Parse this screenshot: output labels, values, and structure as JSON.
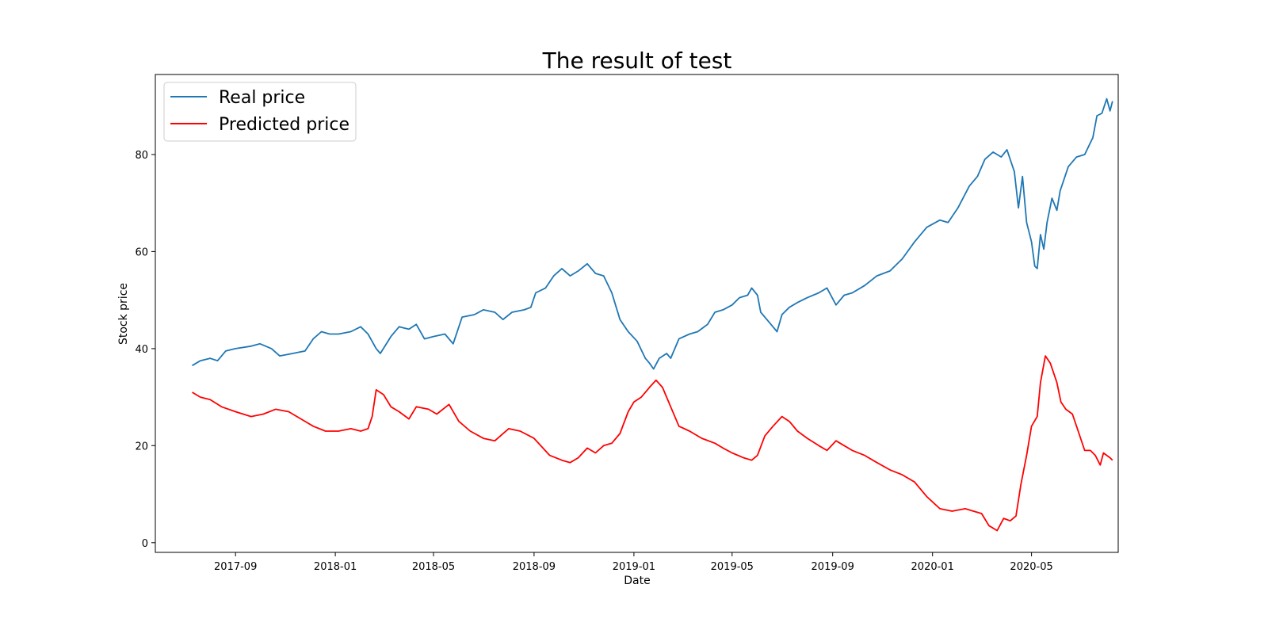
{
  "chart_data": {
    "type": "line",
    "title": "The result of test",
    "xlabel": "Date",
    "ylabel": "Stock price",
    "xlim": [
      "2017-05-26",
      "2020-08-15"
    ],
    "ylim": [
      -2,
      96.5
    ],
    "x_ticks": [
      "2017-09-01",
      "2018-01-01",
      "2018-05-01",
      "2018-09-01",
      "2019-01-01",
      "2019-05-01",
      "2019-09-01",
      "2020-01-01",
      "2020-05-01"
    ],
    "x_tick_labels": [
      "2017-09",
      "2018-01",
      "2018-05",
      "2018-09",
      "2019-01",
      "2019-05",
      "2019-09",
      "2020-01",
      "2020-05"
    ],
    "y_ticks": [
      0,
      20,
      40,
      60,
      80
    ],
    "y_tick_labels": [
      "0",
      "20",
      "40",
      "60",
      "80"
    ],
    "grid": false,
    "legend_position": "top-left",
    "series": [
      {
        "name": "Real price",
        "color": "#1f77b4",
        "points": [
          [
            "2017-07-10",
            36.5
          ],
          [
            "2017-07-20",
            37.5
          ],
          [
            "2017-08-01",
            38.0
          ],
          [
            "2017-08-10",
            37.5
          ],
          [
            "2017-08-20",
            39.5
          ],
          [
            "2017-09-01",
            40.0
          ],
          [
            "2017-09-20",
            40.5
          ],
          [
            "2017-10-01",
            41.0
          ],
          [
            "2017-10-15",
            40.0
          ],
          [
            "2017-10-25",
            38.5
          ],
          [
            "2017-11-10",
            39.0
          ],
          [
            "2017-11-25",
            39.5
          ],
          [
            "2017-12-05",
            42.0
          ],
          [
            "2017-12-15",
            43.5
          ],
          [
            "2017-12-25",
            43.0
          ],
          [
            "2018-01-05",
            43.0
          ],
          [
            "2018-01-20",
            43.5
          ],
          [
            "2018-02-01",
            44.5
          ],
          [
            "2018-02-10",
            43.0
          ],
          [
            "2018-02-20",
            40.0
          ],
          [
            "2018-02-25",
            39.0
          ],
          [
            "2018-03-10",
            42.5
          ],
          [
            "2018-03-20",
            44.5
          ],
          [
            "2018-04-01",
            44.0
          ],
          [
            "2018-04-10",
            45.0
          ],
          [
            "2018-04-20",
            42.0
          ],
          [
            "2018-05-01",
            42.5
          ],
          [
            "2018-05-15",
            43.0
          ],
          [
            "2018-05-25",
            41.0
          ],
          [
            "2018-06-05",
            46.5
          ],
          [
            "2018-06-20",
            47.0
          ],
          [
            "2018-07-01",
            48.0
          ],
          [
            "2018-07-15",
            47.5
          ],
          [
            "2018-07-25",
            46.0
          ],
          [
            "2018-08-05",
            47.5
          ],
          [
            "2018-08-20",
            48.0
          ],
          [
            "2018-08-28",
            48.5
          ],
          [
            "2018-09-03",
            51.5
          ],
          [
            "2018-09-15",
            52.5
          ],
          [
            "2018-09-25",
            55.0
          ],
          [
            "2018-10-05",
            56.5
          ],
          [
            "2018-10-15",
            55.0
          ],
          [
            "2018-10-25",
            56.0
          ],
          [
            "2018-11-05",
            57.5
          ],
          [
            "2018-11-15",
            55.5
          ],
          [
            "2018-11-25",
            55.0
          ],
          [
            "2018-12-05",
            51.5
          ],
          [
            "2018-12-15",
            46.0
          ],
          [
            "2018-12-25",
            43.5
          ],
          [
            "2019-01-05",
            41.5
          ],
          [
            "2019-01-15",
            38.0
          ],
          [
            "2019-01-20",
            37.0
          ],
          [
            "2019-01-25",
            35.8
          ],
          [
            "2019-02-01",
            38.0
          ],
          [
            "2019-02-10",
            39.0
          ],
          [
            "2019-02-15",
            38.0
          ],
          [
            "2019-02-25",
            42.0
          ],
          [
            "2019-03-10",
            43.0
          ],
          [
            "2019-03-20",
            43.5
          ],
          [
            "2019-04-01",
            45.0
          ],
          [
            "2019-04-10",
            47.5
          ],
          [
            "2019-04-20",
            48.0
          ],
          [
            "2019-05-01",
            49.0
          ],
          [
            "2019-05-10",
            50.5
          ],
          [
            "2019-05-20",
            51.0
          ],
          [
            "2019-05-25",
            52.5
          ],
          [
            "2019-06-01",
            51.0
          ],
          [
            "2019-06-05",
            47.5
          ],
          [
            "2019-06-15",
            45.5
          ],
          [
            "2019-06-25",
            43.5
          ],
          [
            "2019-07-01",
            47.0
          ],
          [
            "2019-07-10",
            48.5
          ],
          [
            "2019-07-20",
            49.5
          ],
          [
            "2019-08-01",
            50.5
          ],
          [
            "2019-08-15",
            51.5
          ],
          [
            "2019-08-25",
            52.5
          ],
          [
            "2019-09-05",
            49.0
          ],
          [
            "2019-09-15",
            51.0
          ],
          [
            "2019-09-25",
            51.5
          ],
          [
            "2019-10-10",
            53.0
          ],
          [
            "2019-10-25",
            55.0
          ],
          [
            "2019-11-10",
            56.0
          ],
          [
            "2019-11-25",
            58.5
          ],
          [
            "2019-12-10",
            62.0
          ],
          [
            "2019-12-25",
            65.0
          ],
          [
            "2020-01-10",
            66.5
          ],
          [
            "2020-01-20",
            66.0
          ],
          [
            "2020-02-01",
            69.0
          ],
          [
            "2020-02-15",
            73.5
          ],
          [
            "2020-02-25",
            75.5
          ],
          [
            "2020-03-05",
            79.0
          ],
          [
            "2020-03-15",
            80.5
          ],
          [
            "2020-03-25",
            79.5
          ],
          [
            "2020-04-01",
            81.0
          ],
          [
            "2020-04-05",
            79.0
          ],
          [
            "2020-04-10",
            76.5
          ],
          [
            "2020-04-15",
            69.0
          ],
          [
            "2020-04-20",
            75.5
          ],
          [
            "2020-04-25",
            66.0
          ],
          [
            "2020-05-01",
            62.0
          ],
          [
            "2020-05-05",
            57.0
          ],
          [
            "2020-05-08",
            56.5
          ],
          [
            "2020-05-12",
            63.5
          ],
          [
            "2020-05-16",
            60.5
          ],
          [
            "2020-05-20",
            66.0
          ],
          [
            "2020-05-26",
            71.0
          ],
          [
            "2020-06-01",
            68.5
          ],
          [
            "2020-06-05",
            72.5
          ],
          [
            "2020-06-15",
            77.5
          ],
          [
            "2020-06-25",
            79.5
          ],
          [
            "2020-07-05",
            80.0
          ],
          [
            "2020-07-15",
            83.5
          ],
          [
            "2020-07-20",
            88.0
          ],
          [
            "2020-07-26",
            88.5
          ],
          [
            "2020-08-01",
            91.5
          ],
          [
            "2020-08-05",
            89.0
          ],
          [
            "2020-08-08",
            91.0
          ]
        ]
      },
      {
        "name": "Predicted price",
        "color": "#ff0000",
        "points": [
          [
            "2017-07-10",
            31.0
          ],
          [
            "2017-07-20",
            30.0
          ],
          [
            "2017-08-01",
            29.5
          ],
          [
            "2017-08-15",
            28.0
          ],
          [
            "2017-09-01",
            27.0
          ],
          [
            "2017-09-20",
            26.0
          ],
          [
            "2017-10-05",
            26.5
          ],
          [
            "2017-10-20",
            27.5
          ],
          [
            "2017-11-05",
            27.0
          ],
          [
            "2017-11-20",
            25.5
          ],
          [
            "2017-12-05",
            24.0
          ],
          [
            "2017-12-20",
            23.0
          ],
          [
            "2018-01-05",
            23.0
          ],
          [
            "2018-01-20",
            23.5
          ],
          [
            "2018-02-01",
            23.0
          ],
          [
            "2018-02-10",
            23.5
          ],
          [
            "2018-02-15",
            26.0
          ],
          [
            "2018-02-20",
            31.5
          ],
          [
            "2018-03-01",
            30.5
          ],
          [
            "2018-03-10",
            28.0
          ],
          [
            "2018-03-20",
            27.0
          ],
          [
            "2018-04-01",
            25.5
          ],
          [
            "2018-04-10",
            28.0
          ],
          [
            "2018-04-25",
            27.5
          ],
          [
            "2018-05-05",
            26.5
          ],
          [
            "2018-05-20",
            28.5
          ],
          [
            "2018-06-01",
            25.0
          ],
          [
            "2018-06-15",
            23.0
          ],
          [
            "2018-07-01",
            21.5
          ],
          [
            "2018-07-15",
            21.0
          ],
          [
            "2018-08-01",
            23.5
          ],
          [
            "2018-08-15",
            23.0
          ],
          [
            "2018-09-01",
            21.5
          ],
          [
            "2018-09-20",
            18.0
          ],
          [
            "2018-10-05",
            17.0
          ],
          [
            "2018-10-15",
            16.5
          ],
          [
            "2018-10-25",
            17.5
          ],
          [
            "2018-11-05",
            19.5
          ],
          [
            "2018-11-15",
            18.5
          ],
          [
            "2018-11-25",
            20.0
          ],
          [
            "2018-12-05",
            20.5
          ],
          [
            "2018-12-15",
            22.5
          ],
          [
            "2018-12-25",
            27.0
          ],
          [
            "2019-01-01",
            29.0
          ],
          [
            "2019-01-10",
            30.0
          ],
          [
            "2019-01-20",
            32.0
          ],
          [
            "2019-01-28",
            33.5
          ],
          [
            "2019-02-05",
            32.0
          ],
          [
            "2019-02-15",
            28.0
          ],
          [
            "2019-02-25",
            24.0
          ],
          [
            "2019-03-10",
            23.0
          ],
          [
            "2019-03-25",
            21.5
          ],
          [
            "2019-04-10",
            20.5
          ],
          [
            "2019-04-20",
            19.5
          ],
          [
            "2019-05-01",
            18.5
          ],
          [
            "2019-05-15",
            17.5
          ],
          [
            "2019-05-25",
            17.0
          ],
          [
            "2019-06-01",
            18.0
          ],
          [
            "2019-06-10",
            22.0
          ],
          [
            "2019-06-20",
            24.0
          ],
          [
            "2019-07-01",
            26.0
          ],
          [
            "2019-07-10",
            25.0
          ],
          [
            "2019-07-20",
            23.0
          ],
          [
            "2019-08-01",
            21.5
          ],
          [
            "2019-08-15",
            20.0
          ],
          [
            "2019-08-25",
            19.0
          ],
          [
            "2019-09-05",
            21.0
          ],
          [
            "2019-09-15",
            20.0
          ],
          [
            "2019-09-25",
            19.0
          ],
          [
            "2019-10-10",
            18.0
          ],
          [
            "2019-10-25",
            16.5
          ],
          [
            "2019-11-10",
            15.0
          ],
          [
            "2019-11-25",
            14.0
          ],
          [
            "2019-12-10",
            12.5
          ],
          [
            "2019-12-25",
            9.5
          ],
          [
            "2020-01-10",
            7.0
          ],
          [
            "2020-01-25",
            6.5
          ],
          [
            "2020-02-10",
            7.0
          ],
          [
            "2020-02-20",
            6.5
          ],
          [
            "2020-03-01",
            6.0
          ],
          [
            "2020-03-10",
            3.5
          ],
          [
            "2020-03-20",
            2.5
          ],
          [
            "2020-03-28",
            5.0
          ],
          [
            "2020-04-05",
            4.5
          ],
          [
            "2020-04-12",
            5.5
          ],
          [
            "2020-04-18",
            12.0
          ],
          [
            "2020-04-25",
            18.0
          ],
          [
            "2020-05-01",
            24.0
          ],
          [
            "2020-05-08",
            26.0
          ],
          [
            "2020-05-12",
            33.0
          ],
          [
            "2020-05-18",
            38.5
          ],
          [
            "2020-05-24",
            37.0
          ],
          [
            "2020-06-01",
            33.0
          ],
          [
            "2020-06-06",
            29.0
          ],
          [
            "2020-06-12",
            27.5
          ],
          [
            "2020-06-20",
            26.5
          ],
          [
            "2020-06-28",
            22.5
          ],
          [
            "2020-07-05",
            19.0
          ],
          [
            "2020-07-12",
            19.0
          ],
          [
            "2020-07-18",
            18.0
          ],
          [
            "2020-07-24",
            16.0
          ],
          [
            "2020-07-28",
            18.5
          ],
          [
            "2020-08-01",
            18.0
          ],
          [
            "2020-08-05",
            17.5
          ],
          [
            "2020-08-08",
            17.0
          ]
        ]
      }
    ]
  }
}
